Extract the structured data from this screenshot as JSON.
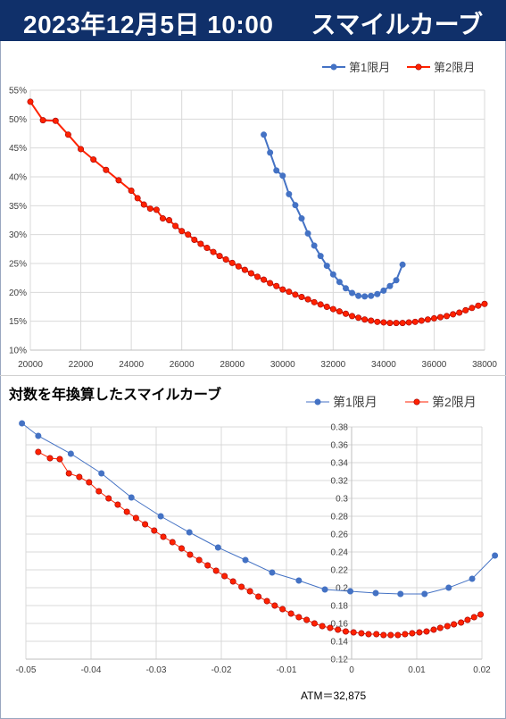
{
  "header": {
    "date": "2023年12月5日 10:00",
    "name": "スマイルカーブ"
  },
  "colors": {
    "header_bg": "#10306a",
    "series1": "#4472c4",
    "series2": "#ff2200"
  },
  "chart2_title": "対数を年換算したスマイルカーブ",
  "atm_label": "ATM＝32,875",
  "chart_data": [
    {
      "type": "line",
      "title": "",
      "xlabel": "",
      "ylabel": "",
      "xlim": [
        20000,
        38000
      ],
      "ylim": [
        10,
        55
      ],
      "x_ticks": [
        "20000",
        "22000",
        "24000",
        "26000",
        "28000",
        "30000",
        "32000",
        "34000",
        "36000",
        "38000"
      ],
      "y_ticks": [
        "10%",
        "15%",
        "20%",
        "25%",
        "30%",
        "35%",
        "40%",
        "45%",
        "50%",
        "55%"
      ],
      "legend_position": "top-right",
      "grid": true,
      "series": [
        {
          "name": "第1限月",
          "x": [
            29250,
            29500,
            29750,
            30000,
            30250,
            30500,
            30750,
            31000,
            31250,
            31500,
            31750,
            32000,
            32250,
            32500,
            32750,
            33000,
            33250,
            33500,
            33750,
            34000,
            34250,
            34500,
            34750
          ],
          "y": [
            47.3,
            44.2,
            41.1,
            40.2,
            37.0,
            35.1,
            32.8,
            30.2,
            28.1,
            26.3,
            24.6,
            23.1,
            21.8,
            20.7,
            19.9,
            19.4,
            19.3,
            19.4,
            19.7,
            20.3,
            21.1,
            22.1,
            24.8
          ]
        },
        {
          "name": "第2限月",
          "x": [
            20000,
            20500,
            21000,
            21500,
            22000,
            22500,
            23000,
            23500,
            24000,
            24250,
            24500,
            24750,
            25000,
            25250,
            25500,
            25750,
            26000,
            26250,
            26500,
            26750,
            27000,
            27250,
            27500,
            27750,
            28000,
            28250,
            28500,
            28750,
            29000,
            29250,
            29500,
            29750,
            30000,
            30250,
            30500,
            30750,
            31000,
            31250,
            31500,
            31750,
            32000,
            32250,
            32500,
            32750,
            33000,
            33250,
            33500,
            33750,
            34000,
            34250,
            34500,
            34750,
            35000,
            35250,
            35500,
            35750,
            36000,
            36250,
            36500,
            36750,
            37000,
            37250,
            37500,
            37750,
            38000
          ],
          "y": [
            53.0,
            49.8,
            49.7,
            47.3,
            44.8,
            43.0,
            41.2,
            39.4,
            37.6,
            36.3,
            35.2,
            34.5,
            34.3,
            32.8,
            32.5,
            31.5,
            30.6,
            30.0,
            29.1,
            28.4,
            27.7,
            27.0,
            26.3,
            25.7,
            25.1,
            24.5,
            23.9,
            23.3,
            22.7,
            22.2,
            21.6,
            21.1,
            20.5,
            20.1,
            19.6,
            19.2,
            18.8,
            18.3,
            17.9,
            17.5,
            17.1,
            16.7,
            16.3,
            15.9,
            15.6,
            15.3,
            15.1,
            14.9,
            14.8,
            14.7,
            14.7,
            14.7,
            14.8,
            14.9,
            15.1,
            15.3,
            15.5,
            15.7,
            15.9,
            16.2,
            16.5,
            16.9,
            17.3,
            17.7,
            18.0
          ]
        }
      ]
    },
    {
      "type": "line",
      "title": "対数を年換算したスマイルカーブ",
      "xlabel": "",
      "ylabel": "",
      "xlim": [
        -0.05,
        0.02
      ],
      "ylim": [
        0.12,
        0.38
      ],
      "x_ticks": [
        "-0.05",
        "-0.04",
        "-0.03",
        "-0.02",
        "-0.01",
        "0",
        "0.01",
        "0.02"
      ],
      "y_ticks": [
        "0.12",
        "0.14",
        "0.16",
        "0.18",
        "0.2",
        "0.22",
        "0.24",
        "0.26",
        "0.28",
        "0.3",
        "0.32",
        "0.34",
        "0.36",
        "0.38"
      ],
      "legend_position": "top-right",
      "grid": true,
      "series": [
        {
          "name": "第1限月",
          "x": [
            -0.0506,
            -0.0481,
            -0.0431,
            -0.0384,
            -0.0338,
            -0.0293,
            -0.0249,
            -0.0205,
            -0.0163,
            -0.0122,
            -0.0081,
            -0.0041,
            -0.0002,
            0.0037,
            0.0075,
            0.0112,
            0.0149,
            0.0185,
            0.022
          ],
          "y": [
            0.384,
            0.37,
            0.35,
            0.328,
            0.301,
            0.28,
            0.262,
            0.245,
            0.231,
            0.217,
            0.208,
            0.198,
            0.196,
            0.194,
            0.193,
            0.193,
            0.2,
            0.21,
            0.236
          ]
        },
        {
          "name": "第2限月",
          "x": [
            -0.0481,
            -0.0463,
            -0.0448,
            -0.0434,
            -0.0418,
            -0.0403,
            -0.0388,
            -0.0373,
            -0.0359,
            -0.0345,
            -0.0331,
            -0.0317,
            -0.0303,
            -0.0289,
            -0.0275,
            -0.0261,
            -0.0248,
            -0.0234,
            -0.0221,
            -0.0208,
            -0.0195,
            -0.0182,
            -0.0169,
            -0.0156,
            -0.0143,
            -0.013,
            -0.0118,
            -0.0106,
            -0.0093,
            -0.0081,
            -0.0069,
            -0.0057,
            -0.0045,
            -0.0033,
            -0.0021,
            -0.0009,
            0.0003,
            0.0015,
            0.0026,
            0.0038,
            0.0049,
            0.006,
            0.0071,
            0.0082,
            0.0093,
            0.0104,
            0.0115,
            0.0126,
            0.0136,
            0.0147,
            0.0157,
            0.0168,
            0.0178,
            0.0188,
            0.0198
          ],
          "y": [
            0.352,
            0.345,
            0.344,
            0.328,
            0.324,
            0.318,
            0.308,
            0.3,
            0.293,
            0.285,
            0.278,
            0.271,
            0.264,
            0.257,
            0.251,
            0.244,
            0.237,
            0.231,
            0.225,
            0.219,
            0.213,
            0.207,
            0.201,
            0.196,
            0.19,
            0.185,
            0.18,
            0.176,
            0.171,
            0.167,
            0.164,
            0.16,
            0.157,
            0.155,
            0.153,
            0.151,
            0.15,
            0.149,
            0.148,
            0.148,
            0.147,
            0.147,
            0.147,
            0.148,
            0.149,
            0.15,
            0.151,
            0.153,
            0.155,
            0.157,
            0.159,
            0.161,
            0.164,
            0.167,
            0.17
          ]
        }
      ]
    }
  ]
}
